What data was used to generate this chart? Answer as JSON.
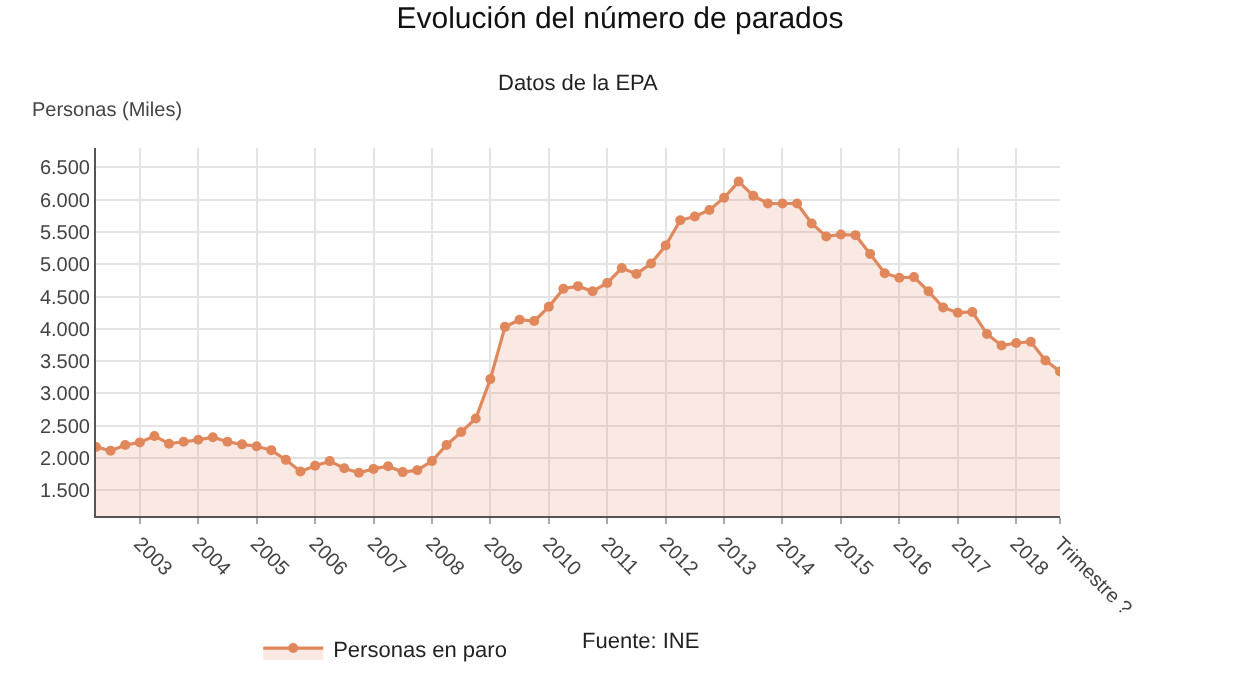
{
  "chart_data": {
    "type": "area",
    "title": "Evolución del número de parados",
    "subtitle": "Datos de la EPA",
    "ylabel": "Personas (Miles)",
    "categories": [
      null,
      null,
      null,
      "2003",
      null,
      null,
      null,
      "2004",
      null,
      null,
      null,
      "2005",
      null,
      null,
      null,
      "2006",
      null,
      null,
      null,
      "2007",
      null,
      null,
      null,
      "2008",
      null,
      null,
      null,
      "2009",
      null,
      null,
      null,
      "2010",
      null,
      null,
      null,
      "2011",
      null,
      null,
      null,
      "2012",
      null,
      null,
      null,
      "2013",
      null,
      null,
      null,
      "2014",
      null,
      null,
      null,
      "2015",
      null,
      null,
      null,
      "2016",
      null,
      null,
      null,
      "2017",
      null,
      null,
      null,
      "2018",
      null,
      null,
      "Trimestre ?"
    ],
    "series": [
      {
        "name": "Personas en paro",
        "color": "#e0875c",
        "values": [
          2170,
          2110,
          2200,
          2240,
          2340,
          2220,
          2250,
          2280,
          2320,
          2250,
          2210,
          2180,
          2120,
          1970,
          1790,
          1880,
          1950,
          1840,
          1770,
          1830,
          1870,
          1780,
          1810,
          1950,
          2200,
          2400,
          2610,
          3220,
          4030,
          4140,
          4120,
          4340,
          4620,
          4660,
          4580,
          4710,
          4940,
          4850,
          5010,
          5290,
          5680,
          5740,
          5840,
          6030,
          6280,
          6060,
          5940,
          5940,
          5940,
          5630,
          5430,
          5460,
          5450,
          5160,
          4860,
          4790,
          4800,
          4580,
          4330,
          4250,
          4260,
          3920,
          3740,
          3780,
          3800,
          3510,
          3340
        ]
      }
    ],
    "ylim": [
      1100,
      6800
    ],
    "yticks": [
      {
        "value": 1500,
        "label": "1.500"
      },
      {
        "value": 2000,
        "label": "2.000"
      },
      {
        "value": 2500,
        "label": "2.500"
      },
      {
        "value": 3000,
        "label": "3.000"
      },
      {
        "value": 3500,
        "label": "3.500"
      },
      {
        "value": 4000,
        "label": "4.000"
      },
      {
        "value": 4500,
        "label": "4.500"
      },
      {
        "value": 5000,
        "label": "5.000"
      },
      {
        "value": 5500,
        "label": "5.500"
      },
      {
        "value": 6000,
        "label": "6.000"
      },
      {
        "value": 6500,
        "label": "6.500"
      }
    ],
    "grid": true,
    "legend": "bottom",
    "marker": "circle",
    "line_style": "solid",
    "annotations": [
      "Fuente: INE"
    ]
  }
}
